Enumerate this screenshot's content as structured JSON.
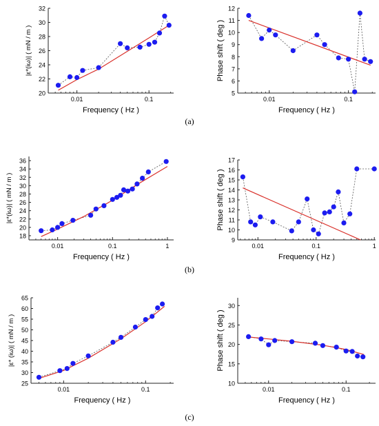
{
  "colors": {
    "points": "#1c1cf0",
    "fit": "#d9302a",
    "guide": "#555555",
    "axis": "#222222"
  },
  "panel_labels": [
    "(a)",
    "(b)",
    "(c)"
  ],
  "chart_data": [
    {
      "id": "a-left",
      "type": "scatter",
      "xlabel": "Frequency ( Hz )",
      "ylabel": "|ε*(iω)| ( mN / m )",
      "xscale": "log",
      "xlim": [
        0.004,
        0.22
      ],
      "ylim": [
        20,
        32
      ],
      "xticks": [
        0.01,
        0.1
      ],
      "xticklabels": [
        "0.01",
        "0.1"
      ],
      "yticks": [
        20,
        22,
        24,
        26,
        28,
        30,
        32
      ],
      "yticklabels": [
        "20",
        "22",
        "24",
        "26",
        "28",
        "30",
        "32"
      ],
      "points": [
        [
          0.0055,
          21.1
        ],
        [
          0.008,
          22.3
        ],
        [
          0.01,
          22.2
        ],
        [
          0.012,
          23.2
        ],
        [
          0.02,
          23.6
        ],
        [
          0.04,
          27.0
        ],
        [
          0.05,
          26.4
        ],
        [
          0.075,
          26.5
        ],
        [
          0.1,
          26.9
        ],
        [
          0.12,
          27.2
        ],
        [
          0.14,
          28.5
        ],
        [
          0.165,
          30.9
        ],
        [
          0.19,
          29.6
        ]
      ],
      "fit": {
        "kind": "curve",
        "points": [
          [
            0.0055,
            20.4
          ],
          [
            0.01,
            21.9
          ],
          [
            0.02,
            23.4
          ],
          [
            0.05,
            25.9
          ],
          [
            0.1,
            27.8
          ],
          [
            0.19,
            29.6
          ]
        ]
      }
    },
    {
      "id": "a-right",
      "type": "scatter",
      "xlabel": "Frequency ( Hz )",
      "ylabel": "Phase shift ( deg )",
      "xscale": "log",
      "xlim": [
        0.004,
        0.22
      ],
      "ylim": [
        5,
        12
      ],
      "xticks": [
        0.01,
        0.1
      ],
      "xticklabels": [
        "0.01",
        "0.1"
      ],
      "yticks": [
        5,
        6,
        7,
        8,
        9,
        10,
        11,
        12
      ],
      "yticklabels": [
        "5",
        "6",
        "7",
        "8",
        "9",
        "10",
        "11",
        "12"
      ],
      "points": [
        [
          0.0055,
          11.4
        ],
        [
          0.008,
          9.5
        ],
        [
          0.01,
          10.2
        ],
        [
          0.012,
          9.8
        ],
        [
          0.02,
          8.5
        ],
        [
          0.04,
          9.8
        ],
        [
          0.05,
          9.0
        ],
        [
          0.075,
          7.9
        ],
        [
          0.1,
          7.8
        ],
        [
          0.12,
          5.1
        ],
        [
          0.14,
          11.6
        ],
        [
          0.16,
          7.8
        ],
        [
          0.19,
          7.6
        ]
      ],
      "fit": {
        "kind": "line",
        "points": [
          [
            0.0055,
            11.0
          ],
          [
            0.19,
            7.3
          ]
        ]
      }
    },
    {
      "id": "b-left",
      "type": "scatter",
      "xlabel": "Frequency ( Hz )",
      "ylabel": "|ε*(iω)| ( mN / m )",
      "xscale": "log",
      "xlim": [
        0.003,
        1.3
      ],
      "ylim": [
        17,
        37
      ],
      "xticks": [
        0.01,
        0.1,
        1
      ],
      "xticklabels": [
        "0.01",
        "0.1",
        "1"
      ],
      "yticks": [
        18,
        20,
        22,
        24,
        26,
        28,
        30,
        32,
        34,
        36
      ],
      "yticklabels": [
        "18",
        "20",
        "22",
        "24",
        "26",
        "28",
        "30",
        "32",
        "34",
        "36"
      ],
      "points": [
        [
          0.005,
          19.2
        ],
        [
          0.008,
          19.4
        ],
        [
          0.01,
          20.0
        ],
        [
          0.012,
          20.9
        ],
        [
          0.019,
          21.7
        ],
        [
          0.04,
          22.9
        ],
        [
          0.05,
          24.4
        ],
        [
          0.07,
          25.2
        ],
        [
          0.1,
          26.7
        ],
        [
          0.12,
          27.2
        ],
        [
          0.14,
          27.7
        ],
        [
          0.16,
          29.0
        ],
        [
          0.19,
          28.7
        ],
        [
          0.23,
          29.2
        ],
        [
          0.28,
          30.4
        ],
        [
          0.35,
          31.8
        ],
        [
          0.45,
          33.3
        ],
        [
          0.95,
          35.8
        ]
      ],
      "fit": {
        "kind": "curve",
        "points": [
          [
            0.005,
            17.8
          ],
          [
            0.01,
            19.6
          ],
          [
            0.03,
            22.6
          ],
          [
            0.1,
            26.5
          ],
          [
            0.3,
            30.5
          ],
          [
            1.0,
            34.6
          ]
        ]
      }
    },
    {
      "id": "b-right",
      "type": "scatter",
      "xlabel": "Frequency ( Hz )",
      "ylabel": "Phase shift ( deg )",
      "xscale": "log",
      "xlim": [
        0.0045,
        1.05
      ],
      "ylim": [
        9,
        17
      ],
      "xticks": [
        0.01,
        0.1,
        1
      ],
      "xticklabels": [
        "0.01",
        "0.1",
        "1"
      ],
      "yticks": [
        9,
        10,
        11,
        12,
        13,
        14,
        15,
        16,
        17
      ],
      "yticklabels": [
        "9",
        "10",
        "11",
        "12",
        "13",
        "14",
        "15",
        "16",
        "17"
      ],
      "points": [
        [
          0.0055,
          15.3
        ],
        [
          0.0075,
          10.8
        ],
        [
          0.009,
          10.5
        ],
        [
          0.011,
          11.3
        ],
        [
          0.018,
          10.8
        ],
        [
          0.038,
          9.9
        ],
        [
          0.05,
          10.8
        ],
        [
          0.07,
          13.1
        ],
        [
          0.09,
          10.0
        ],
        [
          0.11,
          9.6
        ],
        [
          0.14,
          11.7
        ],
        [
          0.17,
          11.8
        ],
        [
          0.2,
          12.3
        ],
        [
          0.24,
          13.8
        ],
        [
          0.3,
          10.7
        ],
        [
          0.38,
          11.6
        ],
        [
          0.5,
          16.1
        ],
        [
          1.0,
          16.1
        ]
      ],
      "fit": {
        "kind": "line",
        "points": [
          [
            0.0055,
            14.2
          ],
          [
            0.58,
            9.0
          ]
        ]
      }
    },
    {
      "id": "c-left",
      "type": "scatter",
      "xlabel": "Frequency ( Hz )",
      "ylabel": "|ε* (iω)| ( mN / m )",
      "xscale": "log",
      "xlim": [
        0.004,
        0.22
      ],
      "ylim": [
        25,
        65
      ],
      "xticks": [
        0.01,
        0.1
      ],
      "xticklabels": [
        "0.01",
        "0.1"
      ],
      "yticks": [
        25,
        30,
        35,
        40,
        45,
        50,
        55,
        60,
        65
      ],
      "yticklabels": [
        "25",
        "30",
        "35",
        "40",
        "45",
        "50",
        "55",
        "60",
        "65"
      ],
      "points": [
        [
          0.005,
          27.8
        ],
        [
          0.009,
          30.9
        ],
        [
          0.011,
          31.9
        ],
        [
          0.013,
          34.3
        ],
        [
          0.02,
          37.8
        ],
        [
          0.04,
          44.2
        ],
        [
          0.05,
          46.5
        ],
        [
          0.075,
          51.3
        ],
        [
          0.1,
          54.8
        ],
        [
          0.12,
          56.3
        ],
        [
          0.14,
          60.3
        ],
        [
          0.16,
          62.1
        ]
      ],
      "fit": {
        "kind": "curve",
        "points": [
          [
            0.005,
            27.3
          ],
          [
            0.01,
            31.0
          ],
          [
            0.02,
            36.7
          ],
          [
            0.05,
            45.8
          ],
          [
            0.1,
            53.8
          ],
          [
            0.17,
            61.0
          ]
        ]
      }
    },
    {
      "id": "c-right",
      "type": "scatter",
      "xlabel": "Frequency ( Hz )",
      "ylabel": "Phase shift ( deg )",
      "xscale": "log",
      "xlim": [
        0.004,
        0.24
      ],
      "ylim": [
        10,
        32
      ],
      "xticks": [
        0.01,
        0.1
      ],
      "xticklabels": [
        "0.01",
        "0.1"
      ],
      "yticks": [
        10,
        15,
        20,
        25,
        30
      ],
      "yticklabels": [
        "10",
        "15",
        "20",
        "25",
        "30"
      ],
      "points": [
        [
          0.0055,
          22.0
        ],
        [
          0.008,
          21.4
        ],
        [
          0.01,
          19.9
        ],
        [
          0.012,
          21.0
        ],
        [
          0.02,
          20.7
        ],
        [
          0.04,
          20.3
        ],
        [
          0.05,
          19.7
        ],
        [
          0.075,
          19.3
        ],
        [
          0.1,
          18.3
        ],
        [
          0.12,
          18.2
        ],
        [
          0.14,
          17.0
        ],
        [
          0.165,
          16.8
        ]
      ],
      "fit": {
        "kind": "curve",
        "points": [
          [
            0.0055,
            21.9
          ],
          [
            0.01,
            21.4
          ],
          [
            0.02,
            20.8
          ],
          [
            0.05,
            19.8
          ],
          [
            0.1,
            18.7
          ],
          [
            0.17,
            17.4
          ]
        ]
      }
    }
  ]
}
